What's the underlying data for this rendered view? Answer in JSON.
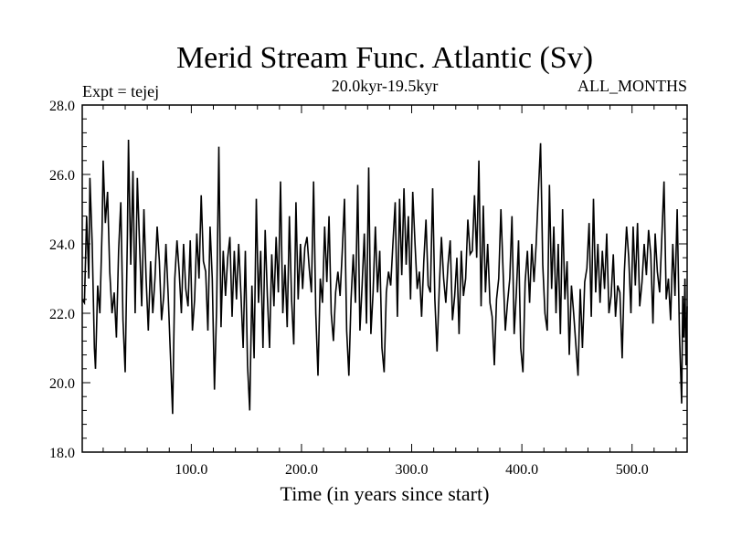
{
  "chart_data": {
    "type": "line",
    "title": "Merid Stream Func. Atlantic (Sv)",
    "subtitle": "20.0kyr-19.5kyr",
    "left_note": "Expt = tejej",
    "right_note": "ALL_MONTHS",
    "xlabel": "Time (in years since start)",
    "ylabel": "",
    "xlim": [
      1,
      550
    ],
    "ylim": [
      18,
      28
    ],
    "x_ticks": [
      {
        "value": 100,
        "label": "100.0"
      },
      {
        "value": 200,
        "label": "200.0"
      },
      {
        "value": 300,
        "label": "300.0"
      },
      {
        "value": 400,
        "label": "400.0"
      },
      {
        "value": 500,
        "label": "500.0"
      }
    ],
    "y_ticks": [
      {
        "value": 18,
        "label": "18.0"
      },
      {
        "value": 20,
        "label": "20.0"
      },
      {
        "value": 22,
        "label": "22.0"
      },
      {
        "value": 24,
        "label": "24.0"
      },
      {
        "value": 26,
        "label": "26.0"
      },
      {
        "value": 28,
        "label": "28.0"
      }
    ],
    "grid": false,
    "series": [
      {
        "color": "#000000",
        "points": [
          [
            1,
            22.4
          ],
          [
            3,
            22.3
          ],
          [
            5,
            24.8
          ],
          [
            7,
            23.0
          ],
          [
            8,
            25.9
          ],
          [
            10,
            24.0
          ],
          [
            12,
            21.0
          ],
          [
            13,
            20.4
          ],
          [
            15,
            22.8
          ],
          [
            17,
            22.0
          ],
          [
            19,
            24.4
          ],
          [
            20,
            26.4
          ],
          [
            22,
            24.6
          ],
          [
            24,
            25.5
          ],
          [
            26,
            23.2
          ],
          [
            28,
            22.0
          ],
          [
            30,
            22.6
          ],
          [
            32,
            21.3
          ],
          [
            34,
            23.8
          ],
          [
            36,
            25.2
          ],
          [
            38,
            21.8
          ],
          [
            40,
            20.3
          ],
          [
            42,
            24.2
          ],
          [
            43,
            27.0
          ],
          [
            45,
            23.4
          ],
          [
            47,
            26.1
          ],
          [
            49,
            22.0
          ],
          [
            51,
            25.9
          ],
          [
            53,
            24.0
          ],
          [
            55,
            22.2
          ],
          [
            57,
            25.0
          ],
          [
            59,
            23.0
          ],
          [
            61,
            21.5
          ],
          [
            63,
            23.5
          ],
          [
            65,
            22.0
          ],
          [
            67,
            23.0
          ],
          [
            69,
            24.5
          ],
          [
            71,
            23.5
          ],
          [
            73,
            21.8
          ],
          [
            75,
            22.5
          ],
          [
            77,
            24.0
          ],
          [
            79,
            22.5
          ],
          [
            81,
            20.8
          ],
          [
            83,
            19.1
          ],
          [
            85,
            23.0
          ],
          [
            87,
            24.1
          ],
          [
            89,
            23.2
          ],
          [
            91,
            22.0
          ],
          [
            93,
            24.0
          ],
          [
            95,
            22.7
          ],
          [
            97,
            22.2
          ],
          [
            99,
            24.1
          ],
          [
            101,
            21.5
          ],
          [
            103,
            22.4
          ],
          [
            105,
            24.3
          ],
          [
            107,
            23.0
          ],
          [
            109,
            25.4
          ],
          [
            111,
            23.5
          ],
          [
            113,
            23.2
          ],
          [
            115,
            21.5
          ],
          [
            117,
            24.5
          ],
          [
            119,
            23.0
          ],
          [
            121,
            19.8
          ],
          [
            123,
            22.2
          ],
          [
            125,
            26.8
          ],
          [
            127,
            21.6
          ],
          [
            129,
            23.8
          ],
          [
            131,
            22.5
          ],
          [
            133,
            23.6
          ],
          [
            135,
            24.2
          ],
          [
            137,
            21.9
          ],
          [
            139,
            23.8
          ],
          [
            141,
            22.4
          ],
          [
            143,
            24.0
          ],
          [
            145,
            22.6
          ],
          [
            147,
            21.0
          ],
          [
            149,
            23.8
          ],
          [
            151,
            20.5
          ],
          [
            153,
            19.2
          ],
          [
            155,
            22.8
          ],
          [
            157,
            20.7
          ],
          [
            159,
            25.3
          ],
          [
            161,
            22.3
          ],
          [
            163,
            23.8
          ],
          [
            165,
            21.0
          ],
          [
            167,
            24.4
          ],
          [
            169,
            22.5
          ],
          [
            171,
            21.0
          ],
          [
            173,
            23.7
          ],
          [
            175,
            22.2
          ],
          [
            177,
            24.2
          ],
          [
            179,
            22.6
          ],
          [
            181,
            25.8
          ],
          [
            183,
            22.0
          ],
          [
            185,
            23.4
          ],
          [
            187,
            21.6
          ],
          [
            189,
            24.8
          ],
          [
            191,
            22.4
          ],
          [
            193,
            21.1
          ],
          [
            195,
            25.2
          ],
          [
            197,
            22.4
          ],
          [
            199,
            24.0
          ],
          [
            201,
            22.7
          ],
          [
            203,
            23.9
          ],
          [
            205,
            24.2
          ],
          [
            207,
            23.3
          ],
          [
            209,
            22.6
          ],
          [
            211,
            25.8
          ],
          [
            213,
            22.0
          ],
          [
            215,
            20.2
          ],
          [
            217,
            23.0
          ],
          [
            219,
            22.3
          ],
          [
            221,
            24.5
          ],
          [
            223,
            22.9
          ],
          [
            225,
            24.8
          ],
          [
            227,
            22.0
          ],
          [
            229,
            21.2
          ],
          [
            231,
            22.6
          ],
          [
            233,
            23.2
          ],
          [
            235,
            22.5
          ],
          [
            237,
            23.8
          ],
          [
            239,
            25.3
          ],
          [
            241,
            21.5
          ],
          [
            243,
            20.2
          ],
          [
            245,
            22.4
          ],
          [
            247,
            23.7
          ],
          [
            249,
            22.3
          ],
          [
            251,
            25.7
          ],
          [
            253,
            21.5
          ],
          [
            255,
            22.8
          ],
          [
            257,
            24.3
          ],
          [
            259,
            21.7
          ],
          [
            261,
            26.2
          ],
          [
            263,
            21.4
          ],
          [
            265,
            22.6
          ],
          [
            267,
            24.5
          ],
          [
            269,
            22.6
          ],
          [
            271,
            23.8
          ],
          [
            273,
            21.0
          ],
          [
            275,
            20.3
          ],
          [
            277,
            22.6
          ],
          [
            279,
            23.2
          ],
          [
            281,
            22.8
          ],
          [
            283,
            24.0
          ],
          [
            285,
            25.2
          ],
          [
            287,
            21.9
          ],
          [
            289,
            25.3
          ],
          [
            291,
            23.1
          ],
          [
            293,
            25.6
          ],
          [
            295,
            23.4
          ],
          [
            297,
            24.8
          ],
          [
            299,
            22.4
          ],
          [
            301,
            25.5
          ],
          [
            303,
            24.0
          ],
          [
            305,
            22.7
          ],
          [
            307,
            23.2
          ],
          [
            309,
            21.9
          ],
          [
            311,
            23.5
          ],
          [
            313,
            24.7
          ],
          [
            315,
            22.8
          ],
          [
            317,
            22.6
          ],
          [
            319,
            25.6
          ],
          [
            321,
            22.4
          ],
          [
            323,
            20.9
          ],
          [
            325,
            22.7
          ],
          [
            327,
            24.2
          ],
          [
            329,
            23.0
          ],
          [
            331,
            22.3
          ],
          [
            333,
            23.4
          ],
          [
            335,
            24.1
          ],
          [
            337,
            21.8
          ],
          [
            339,
            22.5
          ],
          [
            341,
            23.6
          ],
          [
            343,
            21.4
          ],
          [
            345,
            23.8
          ],
          [
            347,
            22.5
          ],
          [
            349,
            23.0
          ],
          [
            351,
            24.7
          ],
          [
            353,
            23.7
          ],
          [
            355,
            23.8
          ],
          [
            357,
            25.4
          ],
          [
            359,
            23.6
          ],
          [
            361,
            26.4
          ],
          [
            363,
            22.2
          ],
          [
            365,
            25.1
          ],
          [
            367,
            22.6
          ],
          [
            369,
            24.0
          ],
          [
            371,
            22.3
          ],
          [
            373,
            21.9
          ],
          [
            375,
            20.5
          ],
          [
            377,
            22.4
          ],
          [
            379,
            23.0
          ],
          [
            381,
            25.0
          ],
          [
            383,
            23.2
          ],
          [
            385,
            21.5
          ],
          [
            387,
            22.3
          ],
          [
            389,
            23.0
          ],
          [
            391,
            24.8
          ],
          [
            393,
            21.4
          ],
          [
            395,
            22.6
          ],
          [
            397,
            24.1
          ],
          [
            399,
            21.0
          ],
          [
            401,
            20.3
          ],
          [
            403,
            22.9
          ],
          [
            405,
            23.8
          ],
          [
            407,
            22.3
          ],
          [
            409,
            24.0
          ],
          [
            411,
            22.9
          ],
          [
            413,
            24.0
          ],
          [
            415,
            25.5
          ],
          [
            417,
            26.9
          ],
          [
            419,
            23.4
          ],
          [
            421,
            22.0
          ],
          [
            423,
            21.5
          ],
          [
            425,
            25.7
          ],
          [
            427,
            22.7
          ],
          [
            429,
            24.5
          ],
          [
            431,
            22.0
          ],
          [
            433,
            24.0
          ],
          [
            435,
            21.4
          ],
          [
            437,
            25.0
          ],
          [
            439,
            22.4
          ],
          [
            441,
            23.5
          ],
          [
            443,
            20.8
          ],
          [
            445,
            22.8
          ],
          [
            447,
            22.0
          ],
          [
            449,
            21.1
          ],
          [
            451,
            20.2
          ],
          [
            453,
            22.7
          ],
          [
            455,
            21.0
          ],
          [
            457,
            22.9
          ],
          [
            459,
            23.3
          ],
          [
            461,
            24.6
          ],
          [
            463,
            21.9
          ],
          [
            465,
            25.3
          ],
          [
            467,
            22.6
          ],
          [
            469,
            24.0
          ],
          [
            471,
            22.3
          ],
          [
            473,
            23.8
          ],
          [
            475,
            22.7
          ],
          [
            477,
            24.3
          ],
          [
            479,
            22.0
          ],
          [
            481,
            22.5
          ],
          [
            483,
            23.7
          ],
          [
            485,
            21.9
          ],
          [
            487,
            22.8
          ],
          [
            489,
            22.6
          ],
          [
            491,
            20.7
          ],
          [
            493,
            23.2
          ],
          [
            495,
            24.5
          ],
          [
            497,
            23.6
          ],
          [
            499,
            22.0
          ],
          [
            501,
            24.5
          ],
          [
            503,
            22.8
          ],
          [
            505,
            24.6
          ],
          [
            507,
            22.2
          ],
          [
            509,
            22.9
          ],
          [
            511,
            24.0
          ],
          [
            513,
            23.1
          ],
          [
            515,
            24.4
          ],
          [
            517,
            23.7
          ],
          [
            519,
            21.7
          ],
          [
            521,
            24.3
          ],
          [
            523,
            23.2
          ],
          [
            525,
            22.6
          ],
          [
            527,
            24.2
          ],
          [
            529,
            25.8
          ],
          [
            531,
            22.4
          ],
          [
            533,
            23.0
          ],
          [
            535,
            21.8
          ],
          [
            537,
            24.0
          ],
          [
            539,
            22.5
          ],
          [
            541,
            25.0
          ],
          [
            543,
            21.4
          ],
          [
            545,
            19.4
          ],
          [
            546,
            22.5
          ],
          [
            547,
            21.3
          ],
          [
            548,
            23.0
          ],
          [
            549,
            20.5
          ],
          [
            550,
            22.2
          ]
        ]
      }
    ]
  }
}
